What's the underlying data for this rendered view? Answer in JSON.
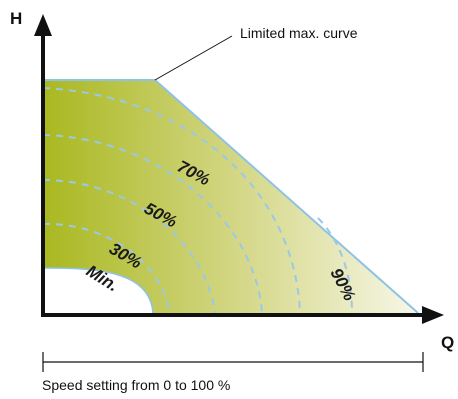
{
  "axes": {
    "y_label": "H",
    "x_label": "Q"
  },
  "callout": {
    "text": "Limited max. curve"
  },
  "caption": {
    "text": "Speed setting from 0 to 100 %"
  },
  "curves": {
    "c70": "70%",
    "c50": "50%",
    "c30": "30%",
    "cmin": "Min.",
    "c90": "90%"
  },
  "colors": {
    "fill_dark": "#a9b820",
    "fill_light": "#f7f7e8",
    "boundary": "#8ec2e6",
    "dashes": "#9cc8e8",
    "axis": "#111111"
  }
}
